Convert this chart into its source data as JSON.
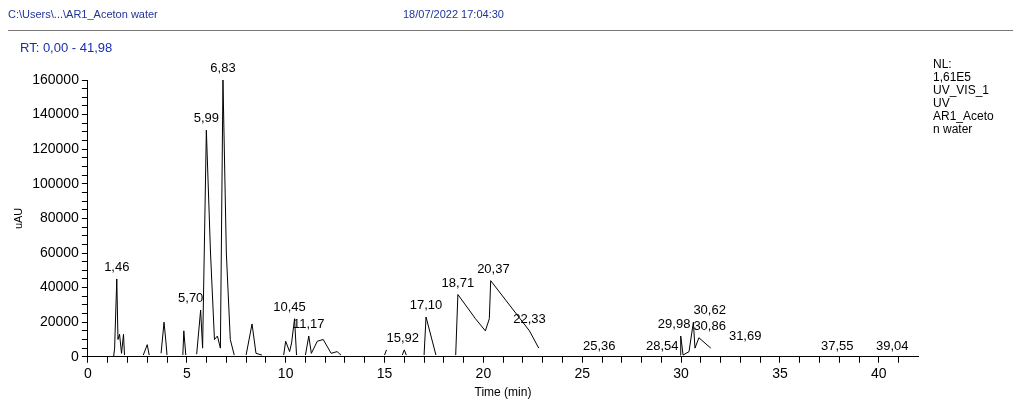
{
  "chart_data": {
    "type": "line",
    "title": "C:\\Users\\...\\AR1_Aceton water",
    "subtitle": "18/07/2022 17:04:30",
    "xlabel": "Time (min)",
    "ylabel": "uAU",
    "annotations": [
      "RT: 0,00 - 41,98",
      "NL:\n1,61E5\nUV_VIS_1\nUV\nAR1_Aceto\nn water",
      {
        "text": "1,46",
        "x": 1.46,
        "y": 45000
      },
      {
        "text": "5,70",
        "x": 5.7,
        "y": 27000
      },
      {
        "text": "5,99",
        "x": 5.99,
        "y": 131000
      },
      {
        "text": "6,83",
        "x": 6.83,
        "y": 160000
      },
      {
        "text": "10,45",
        "x": 10.45,
        "y": 22000
      },
      {
        "text": "11,17",
        "x": 11.17,
        "y": 12000
      },
      {
        "text": "15,92",
        "x": 15.92,
        "y": 4000
      },
      {
        "text": "17,10",
        "x": 17.1,
        "y": 23000
      },
      {
        "text": "18,71",
        "x": 18.71,
        "y": 36000
      },
      {
        "text": "20,37",
        "x": 20.37,
        "y": 44000
      },
      {
        "text": "22,33",
        "x": 22.33,
        "y": 15000
      },
      {
        "text": "29,98",
        "x": 29.98,
        "y": 12000
      },
      {
        "text": "30,62",
        "x": 30.62,
        "y": 20000
      },
      {
        "text": "30,86",
        "x": 30.86,
        "y": 11000
      },
      {
        "text": "31,69",
        "x": 31.69,
        "y": 5000
      },
      "25,36",
      "28,54",
      "37,55",
      "39,04"
    ],
    "x": [
      1.3,
      1.35,
      1.46,
      1.52,
      1.6,
      1.7,
      1.8,
      1.85,
      2.0,
      2.1,
      2.2,
      2.4,
      2.8,
      3.0,
      3.1,
      3.5,
      3.7,
      3.85,
      3.95,
      4.0,
      4.4,
      4.8,
      4.85,
      4.95,
      5.2,
      5.5,
      5.7,
      5.8,
      5.99,
      6.2,
      6.4,
      6.55,
      6.7,
      6.83,
      7.0,
      7.2,
      7.4,
      7.8,
      8.0,
      8.3,
      8.5,
      8.8,
      9.5,
      9.9,
      10.0,
      10.2,
      10.3,
      10.45,
      10.55,
      10.8,
      11.0,
      11.17,
      11.3,
      11.6,
      11.9,
      12.3,
      12.6,
      12.8,
      14.0,
      15.0,
      15.1,
      15.5,
      15.9,
      16.0,
      16.1,
      16.9,
      17.0,
      17.1,
      17.6,
      18.0,
      18.6,
      18.71,
      19.6,
      20.1,
      20.3,
      20.37,
      22.33,
      22.8,
      23.0,
      23.1,
      23.2,
      29.0,
      29.95,
      29.98,
      30.1,
      30.4,
      30.62,
      30.7,
      30.9,
      31.5
    ],
    "series": [
      {
        "color": "#000000",
        "values": [
          0,
          5000,
          45000,
          10000,
          13000,
          2000,
          13000,
          1000,
          null,
          null,
          null,
          null,
          1000,
          7000,
          1000,
          null,
          2000,
          20000,
          8000,
          1000,
          null,
          1000,
          15000,
          1000,
          null,
          1500,
          27000,
          5000,
          131000,
          60000,
          10000,
          12000,
          5000,
          160000,
          60000,
          10000,
          1000,
          null,
          1000,
          19000,
          2000,
          1000,
          null,
          1000,
          9000,
          3000,
          8000,
          22000,
          1000,
          null,
          1000,
          12000,
          2000,
          9000,
          10000,
          2000,
          3000,
          1000,
          null,
          1000,
          4000,
          null,
          1000,
          4000,
          1000,
          null,
          1000,
          23000,
          1000,
          null,
          1000,
          36000,
          22000,
          15000,
          22000,
          44000,
          15000,
          5000,
          null,
          null,
          null,
          null,
          1000,
          12000,
          1000,
          3000,
          20000,
          5000,
          11000,
          5000
        ]
      }
    ],
    "xlim": [
      0,
      41.98
    ],
    "ylim": [
      0,
      160000
    ],
    "xticks": [
      0,
      {
        "value": 1,
        "label": null
      },
      {
        "value": 2,
        "label": null
      },
      {
        "value": 3,
        "label": null
      },
      {
        "value": 4,
        "label": null
      },
      5,
      {
        "value": 6,
        "label": null
      },
      {
        "value": 7,
        "label": null
      },
      {
        "value": 8,
        "label": null
      },
      {
        "value": 9,
        "label": null
      },
      10,
      {
        "value": 11,
        "label": null
      },
      {
        "value": 12,
        "label": null
      },
      {
        "value": 13,
        "label": null
      },
      {
        "value": 14,
        "label": null
      },
      15,
      {
        "value": 16,
        "label": null
      },
      {
        "value": 17,
        "label": null
      },
      {
        "value": 18,
        "label": null
      },
      {
        "value": 19,
        "label": null
      },
      20,
      {
        "value": 21,
        "label": null
      },
      {
        "value": 22,
        "label": null
      },
      {
        "value": 23,
        "label": null
      },
      {
        "value": 24,
        "label": null
      },
      25,
      {
        "value": 26,
        "label": null
      },
      {
        "value": 27,
        "label": null
      },
      {
        "value": 28,
        "label": null
      },
      {
        "value": 29,
        "label": null
      },
      30,
      {
        "value": 31,
        "label": null
      },
      {
        "value": 32,
        "label": null
      },
      {
        "value": 33,
        "label": null
      },
      {
        "value": 34,
        "label": null
      },
      35,
      {
        "value": 36,
        "label": null
      },
      {
        "value": 37,
        "label": null
      },
      {
        "value": 38,
        "label": null
      },
      {
        "value": 39,
        "label": null
      },
      40,
      {
        "value": 41,
        "label": null
      }
    ],
    "yticks": [
      0,
      {
        "value": 5000,
        "label": null
      },
      {
        "value": 10000,
        "label": null
      },
      {
        "value": 15000,
        "label": null
      },
      20000,
      {
        "value": 25000,
        "label": null
      },
      {
        "value": 30000,
        "label": null
      },
      {
        "value": 35000,
        "label": null
      },
      40000,
      {
        "value": 45000,
        "label": null
      },
      {
        "value": 50000,
        "label": null
      },
      {
        "value": 55000,
        "label": null
      },
      60000,
      {
        "value": 65000,
        "label": null
      },
      {
        "value": 70000,
        "label": null
      },
      {
        "value": 75000,
        "label": null
      },
      80000,
      {
        "value": 85000,
        "label": null
      },
      {
        "value": 90000,
        "label": null
      },
      {
        "value": 95000,
        "label": null
      },
      100000,
      {
        "value": 105000,
        "label": null
      },
      {
        "value": 110000,
        "label": null
      },
      {
        "value": 115000,
        "label": null
      },
      120000,
      {
        "value": 125000,
        "label": null
      },
      {
        "value": 130000,
        "label": null
      },
      {
        "value": 135000,
        "label": null
      },
      140000,
      {
        "value": 145000,
        "label": null
      },
      {
        "value": 150000,
        "label": null
      },
      {
        "value": 155000,
        "label": null
      },
      160000
    ],
    "grid": false,
    "legend": false,
    "marker": "none",
    "line_style": "solid"
  }
}
